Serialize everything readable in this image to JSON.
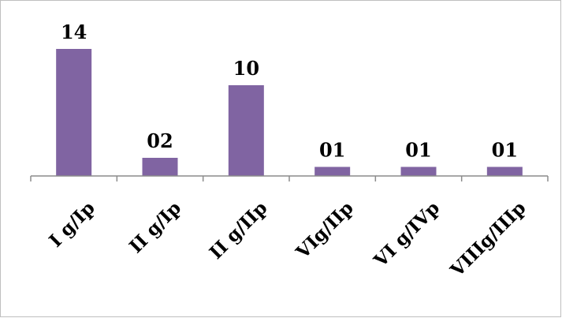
{
  "chart_data": {
    "type": "bar",
    "categories": [
      "I g/Ip",
      "II g/Ip",
      "II g/IIp",
      "VIg/IIp",
      "VI g/IVp",
      "VIIIg/IIIp"
    ],
    "values": [
      14,
      2,
      10,
      1,
      1,
      1
    ],
    "data_labels": [
      "14",
      "02",
      "10",
      "01",
      "01",
      "01"
    ],
    "ylim": [
      0,
      14
    ],
    "grid": false,
    "legend": "none",
    "bar_color": "#8064A2",
    "tick_label_rotation_deg": -45
  }
}
